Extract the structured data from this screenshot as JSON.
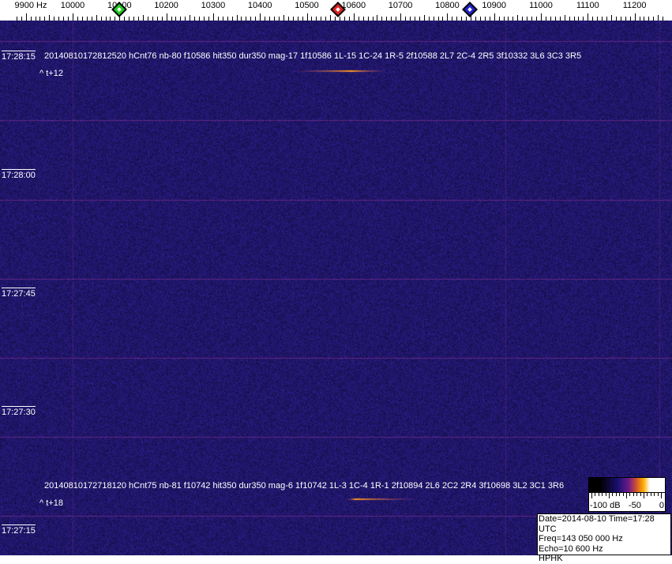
{
  "frequency_axis": {
    "unit": "Hz",
    "labels": [
      "9900 Hz",
      "10000",
      "10100",
      "10200",
      "10300",
      "10400",
      "10500",
      "10600",
      "10700",
      "10800",
      "10900",
      "11000",
      "11100",
      "11200"
    ],
    "values": [
      9900,
      10000,
      10100,
      10200,
      10300,
      10400,
      10500,
      10600,
      10700,
      10800,
      10900,
      11000,
      11100,
      11200
    ]
  },
  "markers": [
    {
      "name": "green",
      "freq": 10100,
      "color": "#22cc22"
    },
    {
      "name": "red",
      "freq": 10567,
      "color": "#dd2222"
    },
    {
      "name": "blue",
      "freq": 10848,
      "color": "#2222cc"
    }
  ],
  "time_labels": [
    "17:28:15",
    "17:28:00",
    "17:27:45",
    "17:27:30",
    "17:27:15"
  ],
  "detections": [
    {
      "line": "20140810172812520 hCnt76 nb-80 f10586 hit350 dur350 mag-17 1f10586 1L-15 1C-24 1R-5 2f10588 2L7 2C-4 2R5 3f10332 3L6 3C3 3R5",
      "offset": "^ t+12"
    },
    {
      "line": "20140810172718120 hCnt75 nb-81 f10742 hit350 dur350 mag-6 1f10742 1L-3 1C-4 1R-1 2f10894 2L6 2C2 2R4 3f10698 3L2 3C1 3R6",
      "offset": "^ t+18"
    }
  ],
  "colorbar": {
    "labels": [
      "-100 dB",
      "-50",
      "0"
    ]
  },
  "info": {
    "date_time": "Date=2014-08-10 Time=17:28 UTC",
    "freq": "Freq=143 050 000 Hz",
    "echo": "Echo=10 600 Hz",
    "station": "HPHK"
  },
  "colors": {
    "background": "#1c1766",
    "grid_line": "#7a2a8a",
    "signal": "#ff9a20"
  }
}
